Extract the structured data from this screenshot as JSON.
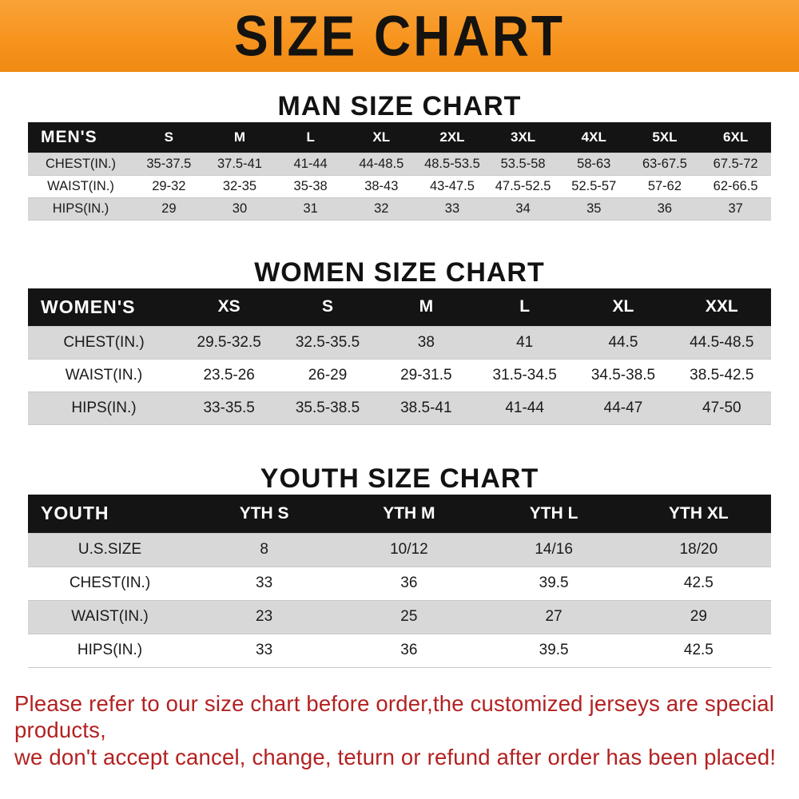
{
  "colors": {
    "banner-bg": "#f7941e",
    "banner-light": "#f9a238",
    "banner-dark": "#ef8a12",
    "header-bg": "#141414",
    "stripe": "#d8d8d8",
    "note-color": "#b32121"
  },
  "banner": {
    "title": "SIZE CHART"
  },
  "sections": [
    {
      "heading": "MAN SIZE CHART",
      "table": {
        "header": [
          "MEN'S",
          "S",
          "M",
          "L",
          "XL",
          "2XL",
          "3XL",
          "4XL",
          "5XL",
          "6XL"
        ],
        "rows": [
          [
            "CHEST(IN.)",
            "35-37.5",
            "37.5-41",
            "41-44",
            "44-48.5",
            "48.5-53.5",
            "53.5-58",
            "58-63",
            "63-67.5",
            "67.5-72"
          ],
          [
            "WAIST(IN.)",
            "29-32",
            "32-35",
            "35-38",
            "38-43",
            "43-47.5",
            "47.5-52.5",
            "52.5-57",
            "57-62",
            "62-66.5"
          ],
          [
            "HIPS(IN.)",
            "29",
            "30",
            "31",
            "32",
            "33",
            "34",
            "35",
            "36",
            "37"
          ]
        ]
      }
    },
    {
      "heading": "WOMEN SIZE CHART",
      "table": {
        "header": [
          "WOMEN'S",
          "XS",
          "S",
          "M",
          "L",
          "XL",
          "XXL"
        ],
        "rows": [
          [
            "CHEST(IN.)",
            "29.5-32.5",
            "32.5-35.5",
            "38",
            "41",
            "44.5",
            "44.5-48.5"
          ],
          [
            "WAIST(IN.)",
            "23.5-26",
            "26-29",
            "29-31.5",
            "31.5-34.5",
            "34.5-38.5",
            "38.5-42.5"
          ],
          [
            "HIPS(IN.)",
            "33-35.5",
            "35.5-38.5",
            "38.5-41",
            "41-44",
            "44-47",
            "47-50"
          ]
        ]
      }
    },
    {
      "heading": "YOUTH SIZE CHART",
      "table": {
        "header": [
          "YOUTH",
          "YTH S",
          "YTH M",
          "YTH L",
          "YTH XL"
        ],
        "rows": [
          [
            "U.S.SIZE",
            "8",
            "10/12",
            "14/16",
            "18/20"
          ],
          [
            "CHEST(IN.)",
            "33",
            "36",
            "39.5",
            "42.5"
          ],
          [
            "WAIST(IN.)",
            "23",
            "25",
            "27",
            "29"
          ],
          [
            "HIPS(IN.)",
            "33",
            "36",
            "39.5",
            "42.5"
          ]
        ]
      }
    }
  ],
  "footer": {
    "line1": "Please refer to our size chart before order,the customized jerseys are special products,",
    "line2": "we don't accept cancel, change, teturn or refund after order has been placed!"
  }
}
